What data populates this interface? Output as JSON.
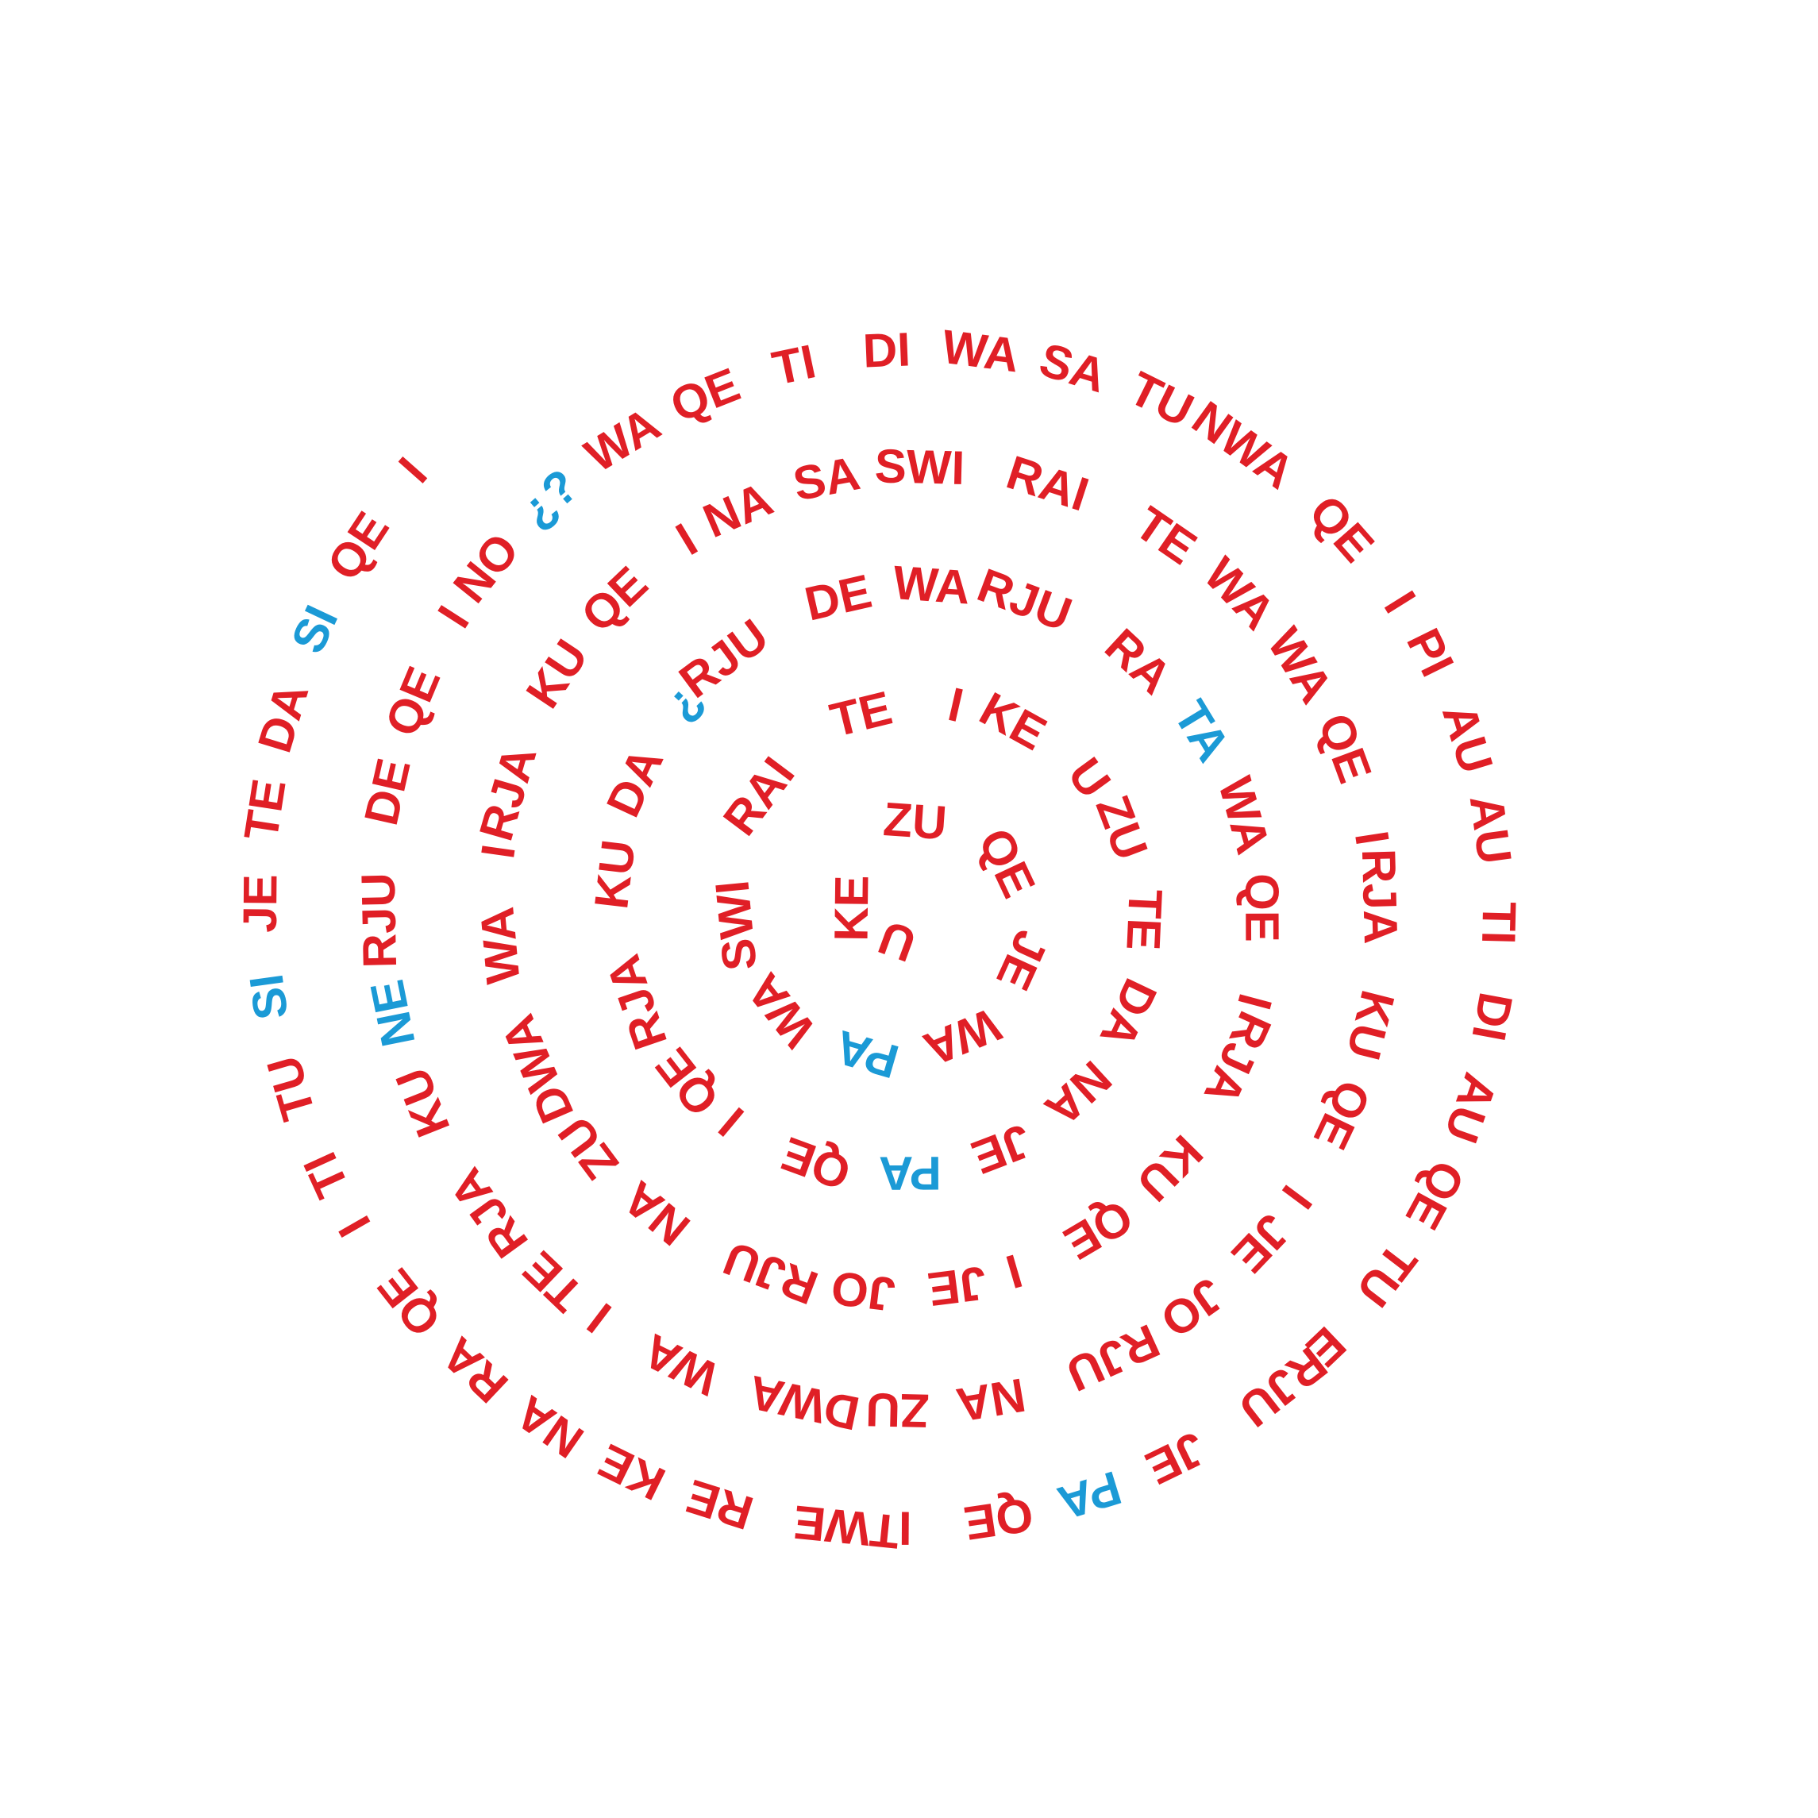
{
  "colors": {
    "normal": "#e01f26",
    "accent": "#1b9ad6"
  },
  "spiral": [
    {
      "text": "U",
      "c": "normal"
    },
    {
      "text": "KE",
      "c": "normal"
    },
    {
      "text": "ZU",
      "c": "normal"
    },
    {
      "text": "QE",
      "c": "normal"
    },
    {
      "text": "JE",
      "c": "normal"
    },
    {
      "text": "WA",
      "c": "normal"
    },
    {
      "text": "PA",
      "c": "accent"
    },
    {
      "text": "WA",
      "c": "normal"
    },
    {
      "text": "SWI",
      "c": "normal"
    },
    {
      "text": "RAI",
      "c": "normal"
    },
    {
      "text": "TE",
      "c": "normal"
    },
    {
      "text": "I",
      "c": "normal"
    },
    {
      "text": "KE",
      "c": "normal"
    },
    {
      "text": "U",
      "c": "normal"
    },
    {
      "text": "ZU",
      "c": "normal"
    },
    {
      "text": "TE",
      "c": "normal"
    },
    {
      "text": "DA",
      "c": "normal"
    },
    {
      "text": "NA",
      "c": "normal"
    },
    {
      "text": "JE",
      "c": "normal"
    },
    {
      "text": "PA",
      "c": "accent"
    },
    {
      "text": "QE",
      "c": "normal"
    },
    {
      "text": "I",
      "c": "normal"
    },
    {
      "text": "QE",
      "c": "normal"
    },
    {
      "text": "RJA",
      "c": "normal"
    },
    {
      "text": "KU",
      "c": "normal"
    },
    {
      "text": "DA",
      "c": "normal"
    },
    {
      "text": "¿",
      "c": "accent"
    },
    {
      "text": "RJU",
      "c": "normal"
    },
    {
      "text": "DE",
      "c": "normal"
    },
    {
      "text": "WA",
      "c": "normal"
    },
    {
      "text": "RJU",
      "c": "normal"
    },
    {
      "text": "RA",
      "c": "normal"
    },
    {
      "text": "TA",
      "c": "accent"
    },
    {
      "text": "WA",
      "c": "normal"
    },
    {
      "text": "QE",
      "c": "normal"
    },
    {
      "text": "I",
      "c": "normal"
    },
    {
      "text": "RJA",
      "c": "normal"
    },
    {
      "text": "KU",
      "c": "normal"
    },
    {
      "text": "QE",
      "c": "normal"
    },
    {
      "text": "I",
      "c": "normal"
    },
    {
      "text": "JE",
      "c": "normal"
    },
    {
      "text": "JO",
      "c": "normal"
    },
    {
      "text": "RJU",
      "c": "normal"
    },
    {
      "text": "NA",
      "c": "normal"
    },
    {
      "text": "ZU",
      "c": "normal"
    },
    {
      "text": "DWA",
      "c": "normal"
    },
    {
      "text": "WA",
      "c": "normal"
    },
    {
      "text": "I",
      "c": "normal"
    },
    {
      "text": "RJA",
      "c": "normal"
    },
    {
      "text": "KU",
      "c": "normal"
    },
    {
      "text": "QE",
      "c": "normal"
    },
    {
      "text": "I",
      "c": "normal"
    },
    {
      "text": "NA",
      "c": "normal"
    },
    {
      "text": "SA",
      "c": "normal"
    },
    {
      "text": "SWI",
      "c": "normal"
    },
    {
      "text": "RAI",
      "c": "normal"
    },
    {
      "text": "TE",
      "c": "normal"
    },
    {
      "text": "WA",
      "c": "normal"
    },
    {
      "text": "WA",
      "c": "normal"
    },
    {
      "text": "QE",
      "c": "normal"
    },
    {
      "text": "I",
      "c": "normal"
    },
    {
      "text": "RJA",
      "c": "normal"
    },
    {
      "text": "KU",
      "c": "normal"
    },
    {
      "text": "QE",
      "c": "normal"
    },
    {
      "text": "I",
      "c": "normal"
    },
    {
      "text": "JE",
      "c": "normal"
    },
    {
      "text": "JO",
      "c": "normal"
    },
    {
      "text": "RJU",
      "c": "normal"
    },
    {
      "text": "NA",
      "c": "normal"
    },
    {
      "text": "ZU",
      "c": "normal"
    },
    {
      "text": "DWA",
      "c": "normal"
    },
    {
      "text": "WA",
      "c": "normal"
    },
    {
      "text": "I",
      "c": "normal"
    },
    {
      "text": "TE",
      "c": "normal"
    },
    {
      "text": "RJA",
      "c": "normal"
    },
    {
      "text": "KU",
      "c": "normal"
    },
    {
      "text": "NE",
      "c": "accent"
    },
    {
      "text": "RJU",
      "c": "normal"
    },
    {
      "text": "DE",
      "c": "normal"
    },
    {
      "text": "QE",
      "c": "normal"
    },
    {
      "text": "I",
      "c": "normal"
    },
    {
      "text": "NO",
      "c": "normal"
    },
    {
      "text": "¿?",
      "c": "accent"
    },
    {
      "text": "WA",
      "c": "normal"
    },
    {
      "text": "QE",
      "c": "normal"
    },
    {
      "text": "TI",
      "c": "normal"
    },
    {
      "text": "DI",
      "c": "normal"
    },
    {
      "text": "WA",
      "c": "normal"
    },
    {
      "text": "SA",
      "c": "normal"
    },
    {
      "text": "TU",
      "c": "normal"
    },
    {
      "text": "NWA",
      "c": "normal"
    },
    {
      "text": "QE",
      "c": "normal"
    },
    {
      "text": "I",
      "c": "normal"
    },
    {
      "text": "PI",
      "c": "normal"
    },
    {
      "text": "AU",
      "c": "normal"
    },
    {
      "text": "AU",
      "c": "normal"
    },
    {
      "text": "TI",
      "c": "normal"
    },
    {
      "text": "DI",
      "c": "normal"
    },
    {
      "text": "AU",
      "c": "normal"
    },
    {
      "text": "QE",
      "c": "normal"
    },
    {
      "text": "TU",
      "c": "normal"
    },
    {
      "text": "E",
      "c": "normal"
    },
    {
      "text": "RJU",
      "c": "normal"
    },
    {
      "text": "JE",
      "c": "normal"
    },
    {
      "text": "PA",
      "c": "accent"
    },
    {
      "text": "QE",
      "c": "normal"
    },
    {
      "text": "I",
      "c": "normal"
    },
    {
      "text": "TWE",
      "c": "normal"
    },
    {
      "text": "RE",
      "c": "normal"
    },
    {
      "text": "KE",
      "c": "normal"
    },
    {
      "text": "NA",
      "c": "normal"
    },
    {
      "text": "RA",
      "c": "normal"
    },
    {
      "text": "QE",
      "c": "normal"
    },
    {
      "text": "I",
      "c": "normal"
    },
    {
      "text": "TI",
      "c": "normal"
    },
    {
      "text": "TU",
      "c": "normal"
    },
    {
      "text": "SI",
      "c": "accent"
    },
    {
      "text": "JE",
      "c": "normal"
    },
    {
      "text": "TE",
      "c": "normal"
    },
    {
      "text": "DA",
      "c": "normal"
    },
    {
      "text": "SI",
      "c": "accent"
    },
    {
      "text": "QE",
      "c": "normal"
    },
    {
      "text": "I",
      "c": "normal"
    }
  ]
}
